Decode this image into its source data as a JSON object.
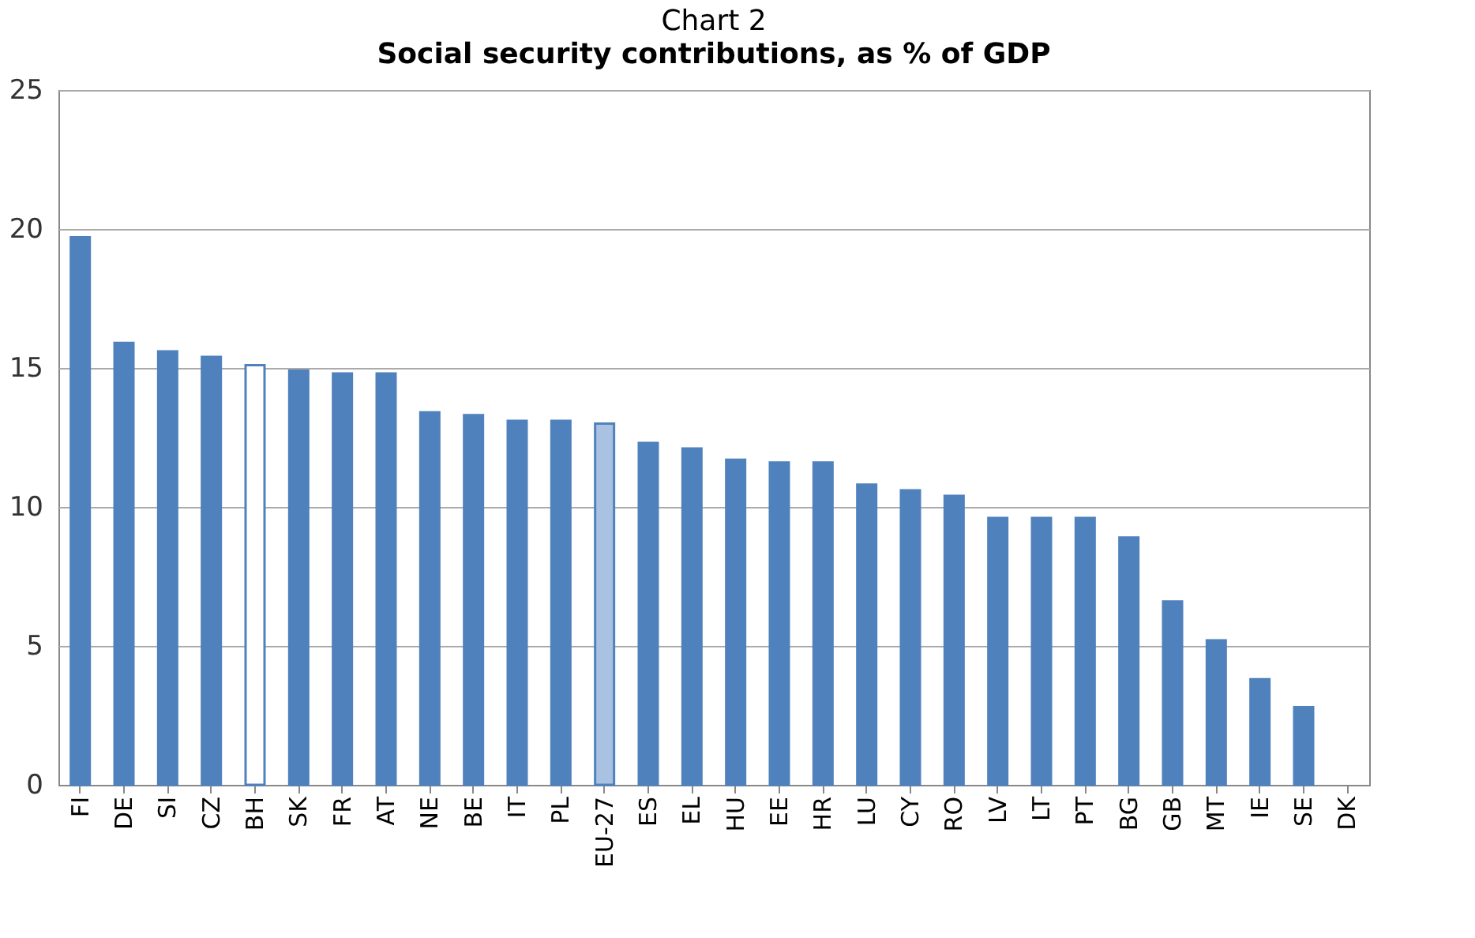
{
  "chart_data": {
    "type": "bar",
    "title": "Chart 2",
    "subtitle": "Social security contributions, as % of GDP",
    "categories": [
      "FI",
      "DE",
      "SI",
      "CZ",
      "BH",
      "SK",
      "FR",
      "AT",
      "NE",
      "BE",
      "IT",
      "PL",
      "EU-27",
      "ES",
      "EL",
      "HU",
      "EE",
      "HR",
      "LU",
      "CY",
      "RO",
      "LV",
      "LT",
      "PT",
      "BG",
      "GB",
      "MT",
      "IE",
      "SE",
      "DK"
    ],
    "values": [
      19.7,
      15.9,
      15.6,
      15.4,
      15.1,
      14.9,
      14.8,
      14.8,
      13.4,
      13.3,
      13.1,
      13.1,
      13.0,
      12.3,
      12.1,
      11.7,
      11.6,
      11.6,
      10.8,
      10.6,
      10.4,
      9.6,
      9.6,
      9.6,
      8.9,
      6.6,
      5.2,
      3.8,
      2.8,
      null
    ],
    "colors": [
      "#4f81bd",
      "#4f81bd",
      "#4f81bd",
      "#4f81bd",
      "#ffffff",
      "#4f81bd",
      "#4f81bd",
      "#4f81bd",
      "#4f81bd",
      "#4f81bd",
      "#4f81bd",
      "#4f81bd",
      "#a9c2e2",
      "#4f81bd",
      "#4f81bd",
      "#4f81bd",
      "#4f81bd",
      "#4f81bd",
      "#4f81bd",
      "#4f81bd",
      "#4f81bd",
      "#4f81bd",
      "#4f81bd",
      "#4f81bd",
      "#4f81bd",
      "#4f81bd",
      "#4f81bd",
      "#4f81bd",
      "#4f81bd",
      "#4f81bd"
    ],
    "ylim": [
      0,
      25
    ],
    "yticks": [
      0,
      5,
      10,
      15,
      20,
      25
    ],
    "grid": "y"
  }
}
